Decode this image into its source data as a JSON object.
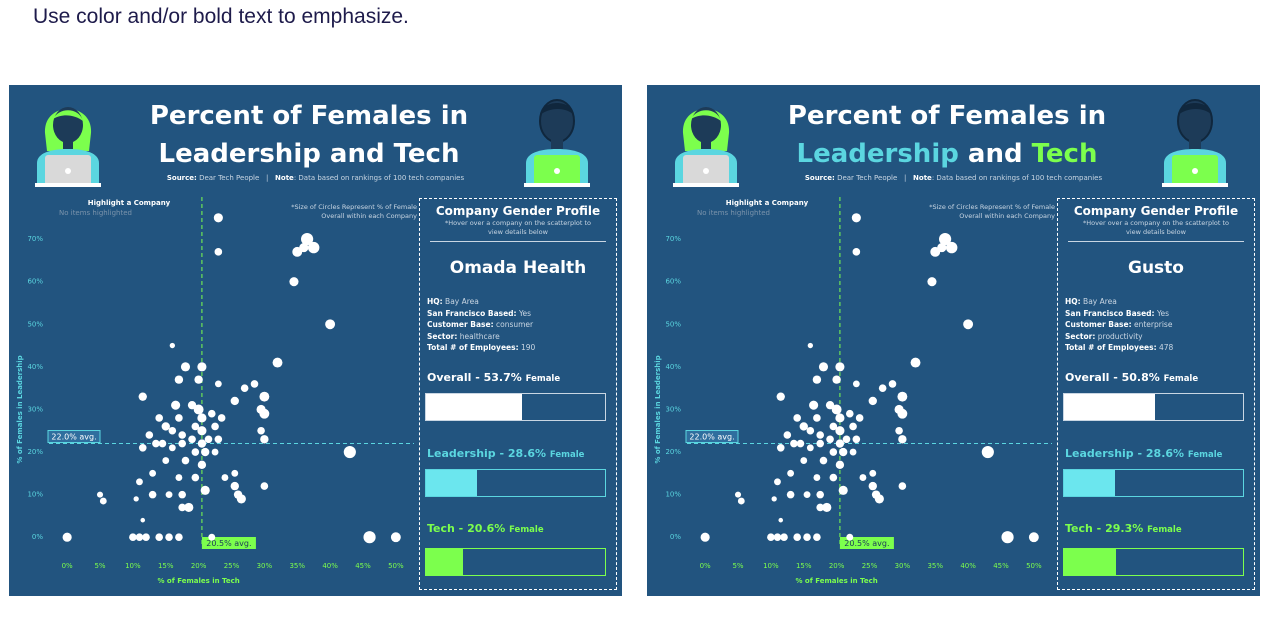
{
  "instruction": "Use color and/or bold text to emphasize.",
  "colors": {
    "background": "#22547f",
    "white": "#ffffff",
    "cyan": "#5bd6e0",
    "green": "#7cff4d",
    "leadership_bar": "#6be6ee",
    "tech_bar": "#7cff4d"
  },
  "icons": [
    "female-avatar-icon",
    "male-avatar-icon",
    "laptop-icon"
  ],
  "panels": [
    {
      "title_line1": "Percent of Females in",
      "title_lead": "Leadership",
      "title_and": "and",
      "title_tech": "Tech",
      "source_label": "Source:",
      "source_value": "Dear Tech People",
      "separator": "|",
      "note_label": "Note",
      "note_value": ": Data based on rankings of 100 tech companies",
      "highlight_label": "Highlight a Company",
      "highlight_value": "No items highlighted",
      "size_note_1": "*Size of Circles Represent % of Female",
      "size_note_2": "Overall within each Company",
      "profile": {
        "heading": "Company Gender Profile",
        "hint": "*Hover over a company on the scatterplot to view details below",
        "company": "Omada Health",
        "hq_label": "HQ:",
        "hq": "Bay Area",
        "sf_label": "San Francisco Based:",
        "sf": "Yes",
        "cb_label": "Customer Base:",
        "cb": "consumer",
        "sector_label": "Sector:",
        "sector": "healthcare",
        "emp_label": "Total # of Employees:",
        "emp": "190",
        "overall_label": "Overall - 53.7%",
        "overall_pct": 53.7,
        "leadership_label": "Leadership - 28.6%",
        "leadership_pct": 28.6,
        "tech_label": "Tech - 20.6%",
        "tech_pct": 20.6,
        "female_word": "Female"
      }
    },
    {
      "title_line1": "Percent of Females in",
      "title_lead": "Leadership",
      "title_and": "and",
      "title_tech": "Tech",
      "source_label": "Source:",
      "source_value": "Dear Tech People",
      "separator": "|",
      "note_label": "Note",
      "note_value": ": Data based on rankings of 100 tech companies",
      "highlight_label": "Highlight a Company",
      "highlight_value": "No items highlighted",
      "size_note_1": "*Size of Circles Represent % of Female",
      "size_note_2": "Overall within each Company",
      "profile": {
        "heading": "Company Gender Profile",
        "hint": "*Hover over a company on the scatterplot to view details below",
        "company": "Gusto",
        "hq_label": "HQ:",
        "hq": "Bay Area",
        "sf_label": "San Francisco Based:",
        "sf": "Yes",
        "cb_label": "Customer Base:",
        "cb": "enterprise",
        "sector_label": "Sector:",
        "sector": "productivity",
        "emp_label": "Total # of Employees:",
        "emp": "478",
        "overall_label": "Overall - 50.8%",
        "overall_pct": 50.8,
        "leadership_label": "Leadership - 28.6%",
        "leadership_pct": 28.6,
        "tech_label": "Tech - 29.3%",
        "tech_pct": 29.3,
        "female_word": "Female"
      }
    }
  ],
  "chart_data": {
    "type": "scatter",
    "xlabel": "% of Females in Tech",
    "ylabel": "% of Females in Leadership",
    "xlim": [
      -2,
      52
    ],
    "ylim": [
      -3,
      78
    ],
    "xticks": [
      "0%",
      "5%",
      "10%",
      "15%",
      "20%",
      "25%",
      "30%",
      "35%",
      "40%",
      "45%",
      "50%"
    ],
    "xtick_values": [
      0,
      5,
      10,
      15,
      20,
      25,
      30,
      35,
      40,
      45,
      50
    ],
    "yticks": [
      "0%",
      "10%",
      "20%",
      "30%",
      "40%",
      "50%",
      "60%",
      "70%"
    ],
    "ytick_values": [
      0,
      10,
      20,
      30,
      40,
      50,
      60,
      70
    ],
    "avg_x": 20.5,
    "avg_x_label": "20.5% avg.",
    "avg_y": 22.0,
    "avg_y_label": "22.0% avg.",
    "grid": false,
    "points": [
      {
        "x": 0,
        "y": 0,
        "s": 1.2
      },
      {
        "x": 5,
        "y": 10,
        "s": 0.8
      },
      {
        "x": 5.5,
        "y": 8.5,
        "s": 0.9
      },
      {
        "x": 10,
        "y": 0,
        "s": 1
      },
      {
        "x": 11,
        "y": 0,
        "s": 1
      },
      {
        "x": 12,
        "y": 0,
        "s": 1
      },
      {
        "x": 14,
        "y": 0,
        "s": 1
      },
      {
        "x": 15.5,
        "y": 0,
        "s": 1
      },
      {
        "x": 17,
        "y": 0,
        "s": 1
      },
      {
        "x": 10.5,
        "y": 9,
        "s": 0.7
      },
      {
        "x": 11,
        "y": 13,
        "s": 0.9
      },
      {
        "x": 11.5,
        "y": 4,
        "s": 0.6
      },
      {
        "x": 11.5,
        "y": 21,
        "s": 1
      },
      {
        "x": 11.5,
        "y": 33,
        "s": 1.1
      },
      {
        "x": 12.5,
        "y": 24,
        "s": 1
      },
      {
        "x": 13,
        "y": 15,
        "s": 0.9
      },
      {
        "x": 13,
        "y": 10,
        "s": 1
      },
      {
        "x": 13.5,
        "y": 22,
        "s": 1
      },
      {
        "x": 14,
        "y": 28,
        "s": 1
      },
      {
        "x": 14.5,
        "y": 22,
        "s": 1
      },
      {
        "x": 15,
        "y": 26,
        "s": 1.1
      },
      {
        "x": 15,
        "y": 18,
        "s": 0.9
      },
      {
        "x": 15.5,
        "y": 10,
        "s": 0.9
      },
      {
        "x": 16,
        "y": 45,
        "s": 0.7
      },
      {
        "x": 16,
        "y": 25,
        "s": 1
      },
      {
        "x": 16,
        "y": 21,
        "s": 0.9
      },
      {
        "x": 16.5,
        "y": 31,
        "s": 1.2
      },
      {
        "x": 17,
        "y": 37,
        "s": 1.1
      },
      {
        "x": 17,
        "y": 28,
        "s": 1
      },
      {
        "x": 17,
        "y": 14,
        "s": 0.9
      },
      {
        "x": 17.5,
        "y": 24,
        "s": 1
      },
      {
        "x": 17.5,
        "y": 22,
        "s": 1
      },
      {
        "x": 17.5,
        "y": 10,
        "s": 1
      },
      {
        "x": 17.5,
        "y": 7,
        "s": 1
      },
      {
        "x": 18,
        "y": 40,
        "s": 1.2
      },
      {
        "x": 18,
        "y": 18,
        "s": 1
      },
      {
        "x": 18.5,
        "y": 7,
        "s": 1.2
      },
      {
        "x": 19,
        "y": 31,
        "s": 1.1
      },
      {
        "x": 19,
        "y": 23,
        "s": 1
      },
      {
        "x": 19.5,
        "y": 26,
        "s": 1
      },
      {
        "x": 19.5,
        "y": 20,
        "s": 1
      },
      {
        "x": 19.5,
        "y": 14,
        "s": 1
      },
      {
        "x": 20,
        "y": 37,
        "s": 1.1
      },
      {
        "x": 20,
        "y": 30,
        "s": 1.3
      },
      {
        "x": 20.5,
        "y": 40,
        "s": 1.2
      },
      {
        "x": 20.5,
        "y": 28,
        "s": 1.2
      },
      {
        "x": 20.5,
        "y": 25,
        "s": 1.2
      },
      {
        "x": 20.5,
        "y": 22,
        "s": 1.1
      },
      {
        "x": 20.5,
        "y": 17,
        "s": 1.1
      },
      {
        "x": 21,
        "y": 11,
        "s": 1.2
      },
      {
        "x": 21,
        "y": 20,
        "s": 1.1
      },
      {
        "x": 21.5,
        "y": 23,
        "s": 1
      },
      {
        "x": 22,
        "y": 0,
        "s": 0.9
      },
      {
        "x": 22,
        "y": 29,
        "s": 1
      },
      {
        "x": 22.5,
        "y": 26,
        "s": 1
      },
      {
        "x": 22.5,
        "y": 20,
        "s": 0.9
      },
      {
        "x": 23,
        "y": 75,
        "s": 1.2
      },
      {
        "x": 23,
        "y": 67,
        "s": 1
      },
      {
        "x": 23,
        "y": 36,
        "s": 0.9
      },
      {
        "x": 23,
        "y": 23,
        "s": 1
      },
      {
        "x": 23.5,
        "y": 28,
        "s": 1
      },
      {
        "x": 24,
        "y": 14,
        "s": 0.9
      },
      {
        "x": 25.5,
        "y": 32,
        "s": 1.1
      },
      {
        "x": 25.5,
        "y": 15,
        "s": 0.9
      },
      {
        "x": 25.5,
        "y": 12,
        "s": 1.1
      },
      {
        "x": 26,
        "y": 10,
        "s": 1.1
      },
      {
        "x": 26.5,
        "y": 9,
        "s": 1.2
      },
      {
        "x": 27,
        "y": 35,
        "s": 1
      },
      {
        "x": 28.5,
        "y": 36,
        "s": 1
      },
      {
        "x": 29.5,
        "y": 30,
        "s": 1.2
      },
      {
        "x": 29.5,
        "y": 25,
        "s": 1
      },
      {
        "x": 30,
        "y": 33,
        "s": 1.3
      },
      {
        "x": 30,
        "y": 29,
        "s": 1.3
      },
      {
        "x": 30,
        "y": 23,
        "s": 1.1
      },
      {
        "x": 30,
        "y": 12,
        "s": 1
      },
      {
        "x": 32,
        "y": 41,
        "s": 1.3
      },
      {
        "x": 34.5,
        "y": 60,
        "s": 1.2
      },
      {
        "x": 35,
        "y": 67,
        "s": 1.3
      },
      {
        "x": 36,
        "y": 68,
        "s": 1.2
      },
      {
        "x": 36.5,
        "y": 70,
        "s": 1.6
      },
      {
        "x": 37.5,
        "y": 68,
        "s": 1.5
      },
      {
        "x": 40,
        "y": 50,
        "s": 1.3
      },
      {
        "x": 43,
        "y": 20,
        "s": 1.6
      },
      {
        "x": 46,
        "y": 0,
        "s": 1.6
      },
      {
        "x": 50,
        "y": 0,
        "s": 1.3
      }
    ]
  }
}
